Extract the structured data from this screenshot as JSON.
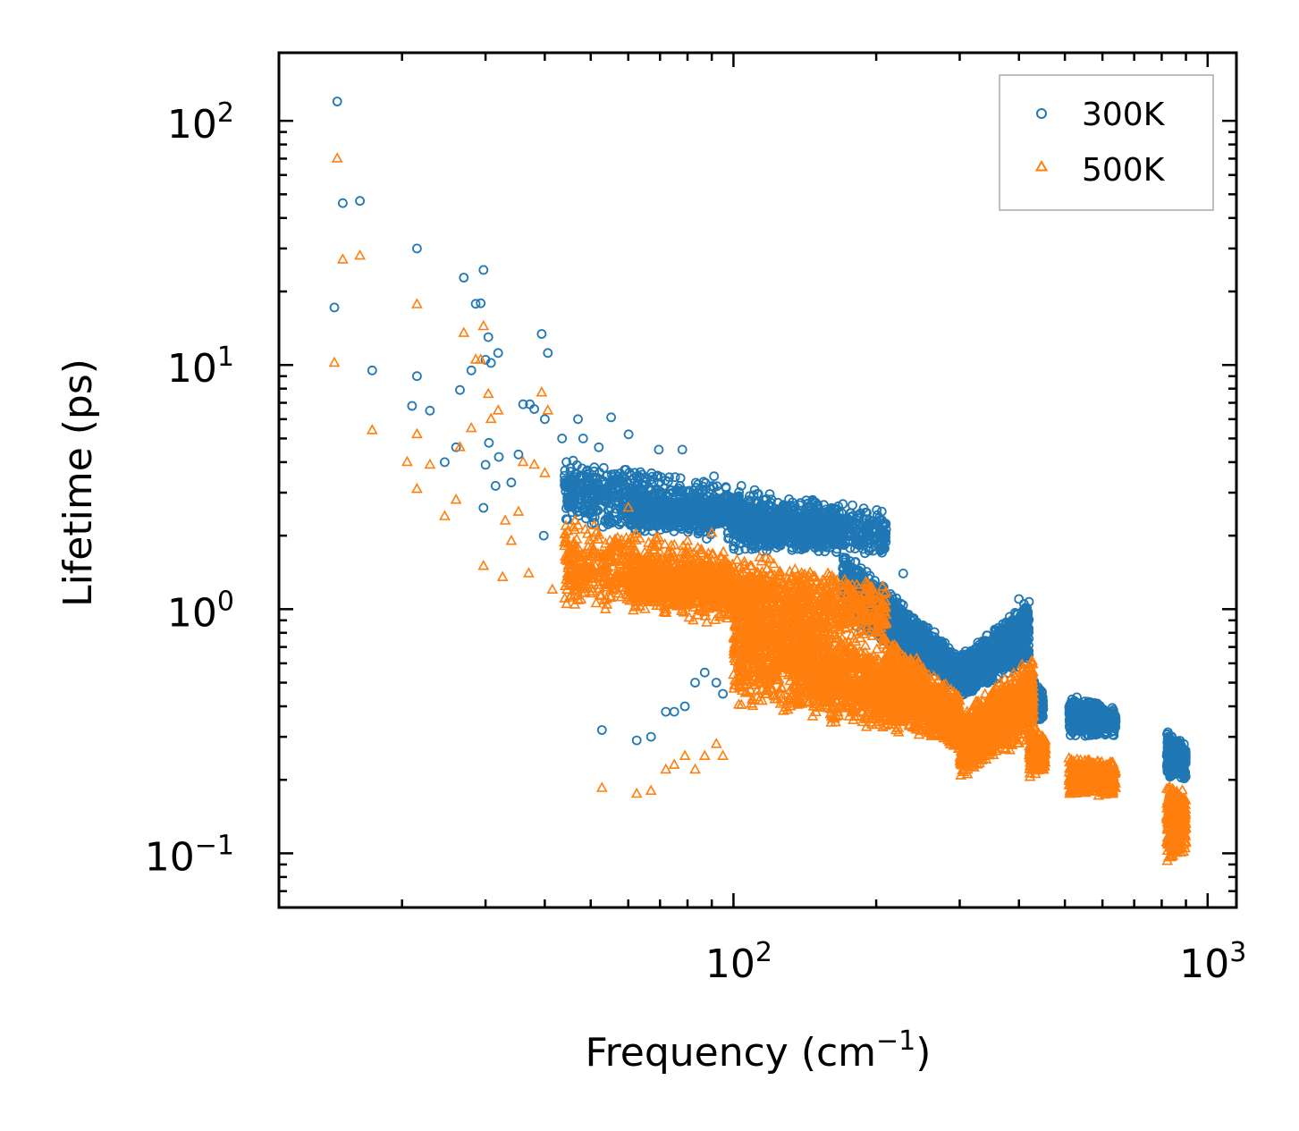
{
  "chart_data": {
    "type": "scatter",
    "title": "",
    "xscale": "log",
    "yscale": "log",
    "xlabel": {
      "text": "Frequency (cm",
      "sup": "−1",
      "tail": ")"
    },
    "ylabel": "Lifetime (ps)",
    "xlim": [
      11,
      1150
    ],
    "ylim": [
      0.06,
      190
    ],
    "xticks": [
      {
        "base": "10",
        "exp": "2",
        "value": 100
      },
      {
        "base": "10",
        "exp": "3",
        "value": 1000
      }
    ],
    "yticks": [
      {
        "base": "10",
        "exp": "−1",
        "value": 0.1
      },
      {
        "base": "10",
        "exp": "0",
        "value": 1
      },
      {
        "base": "10",
        "exp": "1",
        "value": 10
      },
      {
        "base": "10",
        "exp": "2",
        "value": 100
      }
    ],
    "legend": {
      "placement": "top-right",
      "entries": [
        "300K",
        "500K"
      ]
    },
    "series": [
      {
        "name": "300K",
        "marker": "circle",
        "color": "#1f77b4",
        "points": [
          [
            14.6,
            120
          ],
          [
            15.0,
            46
          ],
          [
            16.3,
            47
          ],
          [
            14.4,
            17.2
          ],
          [
            17.3,
            9.5
          ],
          [
            21.5,
            30
          ],
          [
            21.5,
            9.0
          ],
          [
            22.9,
            6.5
          ],
          [
            21.0,
            6.8
          ],
          [
            24.6,
            4.0
          ],
          [
            26.0,
            4.6
          ],
          [
            26.5,
            7.9
          ],
          [
            27.0,
            22.8
          ],
          [
            28.6,
            17.8
          ],
          [
            29.3,
            17.9
          ],
          [
            29.7,
            24.5
          ],
          [
            28.0,
            9.5
          ],
          [
            30.4,
            13.0
          ],
          [
            30.8,
            10.2
          ],
          [
            31.9,
            11.2
          ],
          [
            30.0,
            10.5
          ],
          [
            30.5,
            4.8
          ],
          [
            32.0,
            4.2
          ],
          [
            31.5,
            3.2
          ],
          [
            29.7,
            2.6
          ],
          [
            30.0,
            3.9
          ],
          [
            34.0,
            3.3
          ],
          [
            35.2,
            4.3
          ],
          [
            36.0,
            6.9
          ],
          [
            37.2,
            6.9
          ],
          [
            38.0,
            6.6
          ],
          [
            39.4,
            13.4
          ],
          [
            40.6,
            11.2
          ],
          [
            40.0,
            6.0
          ],
          [
            43.5,
            5.0
          ],
          [
            39.8,
            2.0
          ],
          [
            47.0,
            6.0
          ],
          [
            48.2,
            5.0
          ],
          [
            52.0,
            4.6
          ],
          [
            55.2,
            6.1
          ],
          [
            60.1,
            5.2
          ],
          [
            69.6,
            4.5
          ],
          [
            78.0,
            4.5
          ],
          [
            91.0,
            3.5
          ],
          [
            52.8,
            0.32
          ],
          [
            62.5,
            0.29
          ],
          [
            67.0,
            0.3
          ],
          [
            72.0,
            0.38
          ],
          [
            75.0,
            0.38
          ],
          [
            79.0,
            0.4
          ],
          [
            83.0,
            0.5
          ],
          [
            87.0,
            0.55
          ],
          [
            92.0,
            0.5
          ],
          [
            95.0,
            0.45
          ],
          [
            190.0,
            2.1
          ],
          [
            195.0,
            2.0
          ],
          [
            228.0,
            1.4
          ],
          [
            260.0,
            0.7
          ],
          [
            400.0,
            1.1
          ],
          [
            410.0,
            1.05
          ]
        ],
        "clusters": [
          {
            "x_range": [
              44,
              210
            ],
            "y_at_x_start": [
              2.2,
              4.2
            ],
            "y_at_x_end": [
              1.6,
              2.6
            ],
            "count": 1400
          },
          {
            "x_range": [
              60,
              100
            ],
            "y_at_x_start": [
              2.0,
              2.9
            ],
            "y_at_x_end": [
              2.2,
              2.9
            ],
            "count": 500
          },
          {
            "x_range": [
              100,
              170
            ],
            "y_at_x_start": [
              1.7,
              2.7
            ],
            "y_at_x_end": [
              1.7,
              2.5
            ],
            "count": 500
          },
          {
            "x_range": [
              170,
              300
            ],
            "y_at_x_start": [
              0.9,
              1.8
            ],
            "y_at_x_end": [
              0.45,
              0.65
            ],
            "count": 1200
          },
          {
            "x_range": [
              300,
              420
            ],
            "y_at_x_start": [
              0.42,
              0.65
            ],
            "y_at_x_end": [
              0.6,
              1.1
            ],
            "count": 1000
          },
          {
            "x_range": [
              420,
              450
            ],
            "y_at_x_start": [
              0.35,
              0.6
            ],
            "y_at_x_end": [
              0.35,
              0.45
            ],
            "count": 250
          },
          {
            "x_range": [
              510,
              640
            ],
            "y_at_x_start": [
              0.3,
              0.45
            ],
            "y_at_x_end": [
              0.3,
              0.4
            ],
            "count": 500
          },
          {
            "x_range": [
              820,
              900
            ],
            "y_at_x_start": [
              0.2,
              0.32
            ],
            "y_at_x_end": [
              0.2,
              0.28
            ],
            "count": 350
          }
        ]
      },
      {
        "name": "500K",
        "marker": "triangle",
        "color": "#ff7f0e",
        "points": [
          [
            14.6,
            70
          ],
          [
            15.0,
            27
          ],
          [
            16.3,
            28
          ],
          [
            14.4,
            10.2
          ],
          [
            17.3,
            5.4
          ],
          [
            21.5,
            17.7
          ],
          [
            21.5,
            5.2
          ],
          [
            21.5,
            3.1
          ],
          [
            20.5,
            4.0
          ],
          [
            22.9,
            3.9
          ],
          [
            24.6,
            2.4
          ],
          [
            26.0,
            2.8
          ],
          [
            26.5,
            4.6
          ],
          [
            27.0,
            13.5
          ],
          [
            28.6,
            10.5
          ],
          [
            29.3,
            10.5
          ],
          [
            29.7,
            14.4
          ],
          [
            28.0,
            5.5
          ],
          [
            29.7,
            1.5
          ],
          [
            30.4,
            7.6
          ],
          [
            30.8,
            6.0
          ],
          [
            31.9,
            6.5
          ],
          [
            33.0,
            2.3
          ],
          [
            34.0,
            1.9
          ],
          [
            35.2,
            2.5
          ],
          [
            36.0,
            4.0
          ],
          [
            38.0,
            3.9
          ],
          [
            39.4,
            7.7
          ],
          [
            40.6,
            6.5
          ],
          [
            40.0,
            3.6
          ],
          [
            32.6,
            1.35
          ],
          [
            37.0,
            1.4
          ],
          [
            41.5,
            1.2
          ],
          [
            52.8,
            0.185
          ],
          [
            62.5,
            0.175
          ],
          [
            67.0,
            0.18
          ],
          [
            72.0,
            0.22
          ],
          [
            75.0,
            0.23
          ],
          [
            79.0,
            0.25
          ],
          [
            83.0,
            0.22
          ],
          [
            87.0,
            0.25
          ],
          [
            92.0,
            0.28
          ],
          [
            95.0,
            0.25
          ],
          [
            60.0,
            2.6
          ],
          [
            70.0,
            1.7
          ],
          [
            80.0,
            1.9
          ],
          [
            90.0,
            2.05
          ]
        ],
        "clusters": [
          {
            "x_range": [
              44,
              210
            ],
            "y_at_x_start": [
              1.0,
              2.4
            ],
            "y_at_x_end": [
              0.7,
              1.3
            ],
            "count": 1500
          },
          {
            "x_range": [
              60,
              100
            ],
            "y_at_x_start": [
              1.0,
              1.7
            ],
            "y_at_x_end": [
              1.0,
              1.6
            ],
            "count": 500
          },
          {
            "x_range": [
              100,
              230
            ],
            "y_at_x_start": [
              0.4,
              1.5
            ],
            "y_at_x_end": [
              0.3,
              0.6
            ],
            "count": 1700
          },
          {
            "x_range": [
              210,
              300
            ],
            "y_at_x_start": [
              0.35,
              0.8
            ],
            "y_at_x_end": [
              0.25,
              0.45
            ],
            "count": 900
          },
          {
            "x_range": [
              300,
              430
            ],
            "y_at_x_start": [
              0.2,
              0.38
            ],
            "y_at_x_end": [
              0.3,
              0.65
            ],
            "count": 1000
          },
          {
            "x_range": [
              420,
              455
            ],
            "y_at_x_start": [
              0.2,
              0.35
            ],
            "y_at_x_end": [
              0.22,
              0.3
            ],
            "count": 250
          },
          {
            "x_range": [
              510,
              640
            ],
            "y_at_x_start": [
              0.17,
              0.25
            ],
            "y_at_x_end": [
              0.17,
              0.24
            ],
            "count": 500
          },
          {
            "x_range": [
              820,
              900
            ],
            "y_at_x_start": [
              0.09,
              0.2
            ],
            "y_at_x_end": [
              0.1,
              0.18
            ],
            "count": 350
          }
        ]
      }
    ]
  }
}
